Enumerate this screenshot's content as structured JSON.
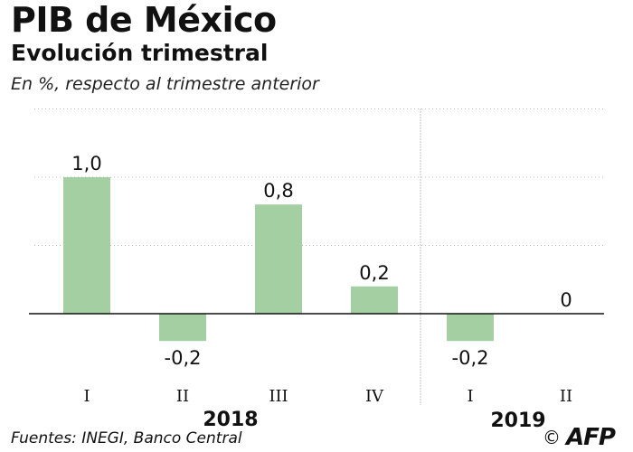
{
  "header": {
    "title": "PIB de México",
    "subtitle": "Evolución trimestral",
    "unit": "En %, respecto al trimestre anterior"
  },
  "footer": {
    "source": "Fuentes: INEGI, Banco Central",
    "copyright": "©",
    "agency": "AFP"
  },
  "colors": {
    "bar": "#a3cfa3",
    "axis": "#111111",
    "grid": "#bbbbbb"
  },
  "chart_data": {
    "type": "bar",
    "title": "PIB de México",
    "subtitle": "Evolución trimestral",
    "ylabel": "En %, respecto al trimestre anterior",
    "categories": [
      "I",
      "II",
      "III",
      "IV",
      "I",
      "II"
    ],
    "groups": [
      {
        "label": "2018",
        "categories": [
          "I",
          "II",
          "III",
          "IV"
        ]
      },
      {
        "label": "2019",
        "categories": [
          "I",
          "II"
        ]
      }
    ],
    "values": [
      1.0,
      -0.2,
      0.8,
      0.2,
      -0.2,
      0
    ],
    "value_labels": [
      "1,0",
      "-0,2",
      "0,8",
      "0,2",
      "-0,2",
      "0"
    ],
    "ylim": [
      -0.4,
      1.5
    ],
    "grid": true,
    "legend": "none"
  }
}
